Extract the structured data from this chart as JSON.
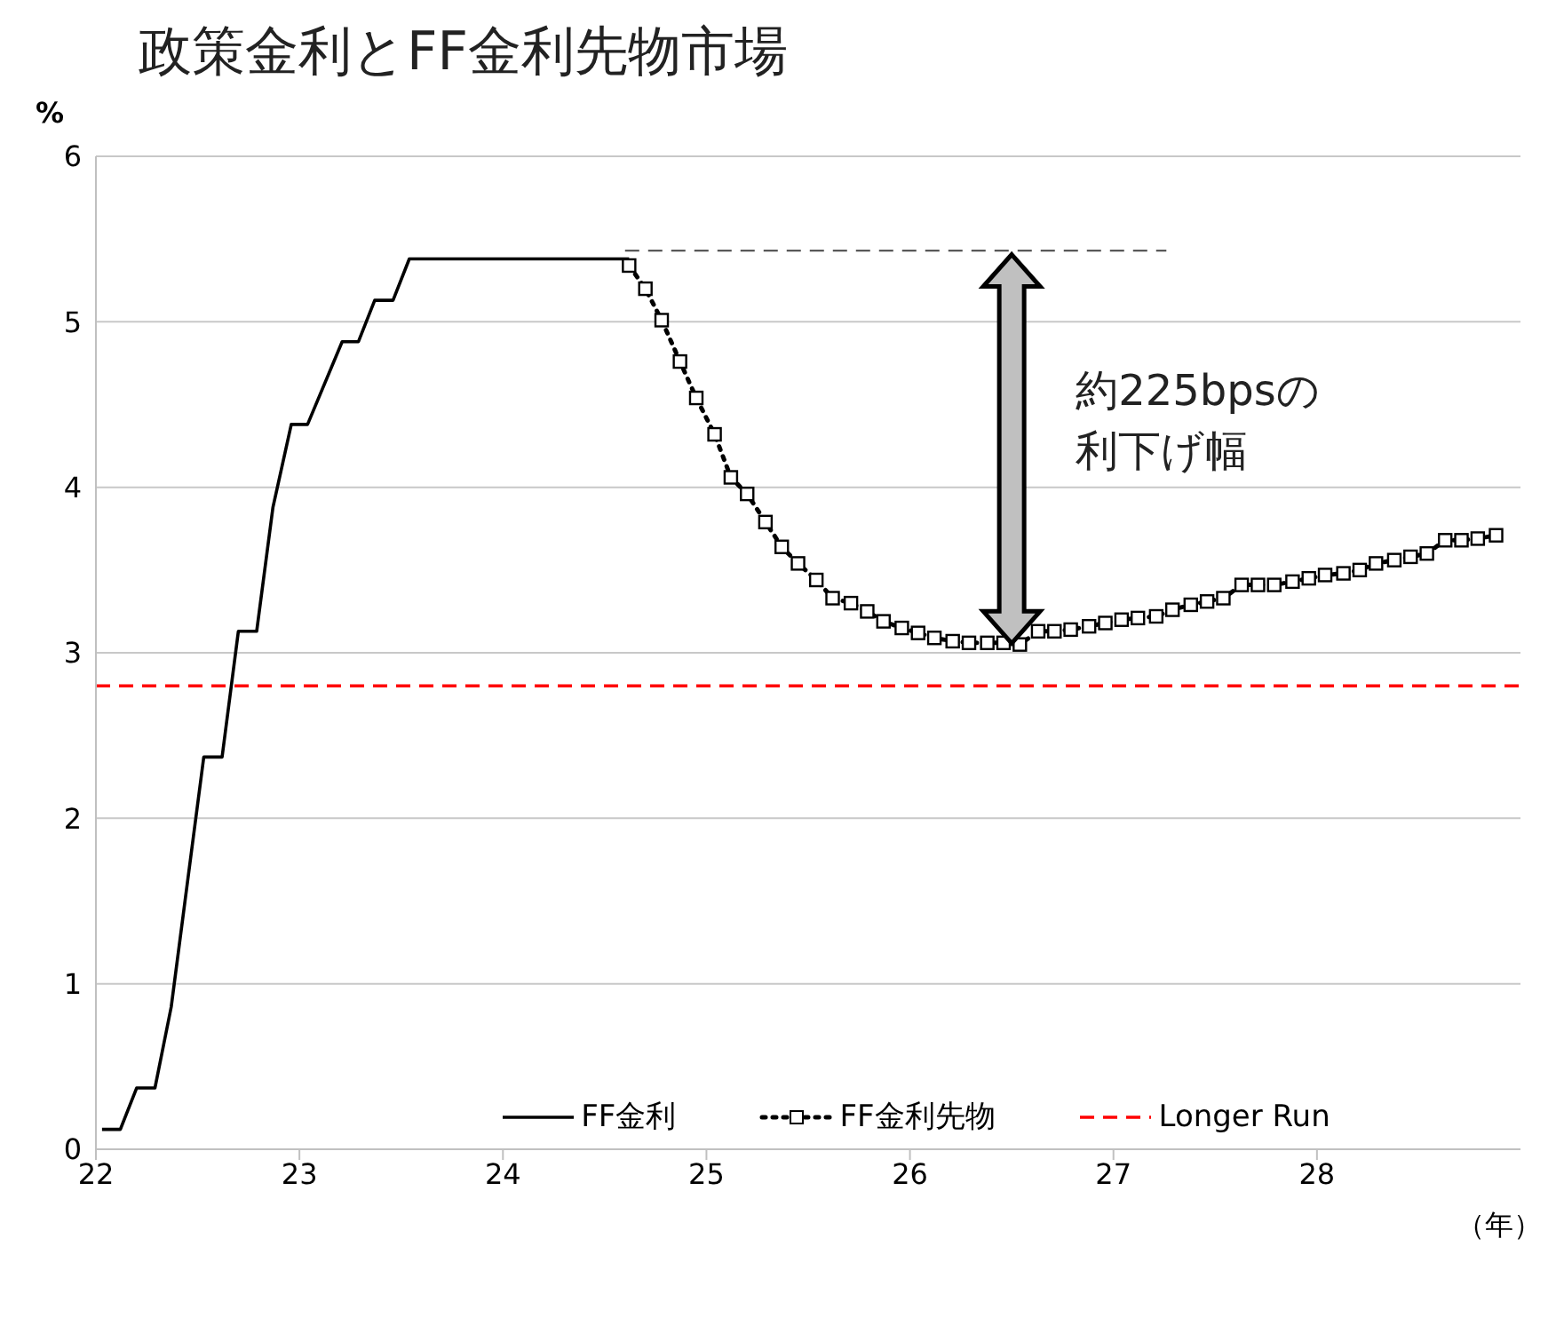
{
  "chart_data": {
    "type": "line",
    "title": "政策金利とFF金利先物市場",
    "ylabel": "%",
    "xlabel": "（年）",
    "annotations": [
      "約225bpsの利下げ幅"
    ],
    "xlim": [
      22,
      29
    ],
    "xticks": [
      22,
      23,
      24,
      25,
      26,
      27,
      28
    ],
    "ylim": [
      0,
      6
    ],
    "yticks": [
      0,
      1,
      2,
      3,
      4,
      5,
      6
    ],
    "grid": "y",
    "legend": "bottom",
    "series": [
      {
        "name": "FF金利",
        "color": "#000000",
        "line_style": "solid",
        "marker": "none",
        "x": [
          22.03,
          22.12,
          22.2,
          22.29,
          22.37,
          22.53,
          22.62,
          22.7,
          22.79,
          22.87,
          22.96,
          23.04,
          23.21,
          23.29,
          23.37,
          23.46,
          23.54,
          24.62
        ],
        "values": [
          0.12,
          0.12,
          0.37,
          0.37,
          0.86,
          2.37,
          2.37,
          3.13,
          3.13,
          3.88,
          4.38,
          4.38,
          4.88,
          4.88,
          5.13,
          5.13,
          5.38,
          5.38
        ]
      },
      {
        "name": "FF金利先物",
        "color": "#000000",
        "line_style": "dotted",
        "marker": "square",
        "x": [
          24.62,
          24.7,
          24.78,
          24.87,
          24.95,
          25.04,
          25.12,
          25.2,
          25.29,
          25.37,
          25.45,
          25.54,
          25.62,
          25.71,
          25.79,
          25.87,
          25.96,
          26.04,
          26.12,
          26.21,
          26.29,
          26.38,
          26.46,
          26.54,
          26.63,
          26.71,
          26.79,
          26.88,
          26.96,
          27.04,
          27.12,
          27.21,
          27.29,
          27.38,
          27.46,
          27.54,
          27.63,
          27.71,
          27.79,
          27.88,
          27.96,
          28.04,
          28.13,
          28.21,
          28.29,
          28.38,
          28.46,
          28.54,
          28.63,
          28.71,
          28.79,
          28.88
        ],
        "values": [
          5.34,
          5.2,
          5.01,
          4.76,
          4.54,
          4.32,
          4.06,
          3.96,
          3.79,
          3.64,
          3.54,
          3.44,
          3.33,
          3.3,
          3.25,
          3.19,
          3.15,
          3.12,
          3.09,
          3.07,
          3.06,
          3.06,
          3.06,
          3.05,
          3.13,
          3.13,
          3.14,
          3.16,
          3.18,
          3.2,
          3.21,
          3.22,
          3.26,
          3.29,
          3.31,
          3.33,
          3.41,
          3.41,
          3.41,
          3.43,
          3.45,
          3.47,
          3.48,
          3.5,
          3.54,
          3.56,
          3.58,
          3.6,
          3.68,
          3.68,
          3.69,
          3.71
        ]
      },
      {
        "name": "Longer Run",
        "color": "#ff0000",
        "line_style": "dashed",
        "marker": "none",
        "x": [
          22,
          29
        ],
        "values": [
          2.8,
          2.8
        ]
      },
      {
        "color": "#444444",
        "line_style": "dashed",
        "marker": "none",
        "x": [
          24.6,
          27.26
        ],
        "values": [
          5.43,
          5.43
        ]
      }
    ]
  }
}
